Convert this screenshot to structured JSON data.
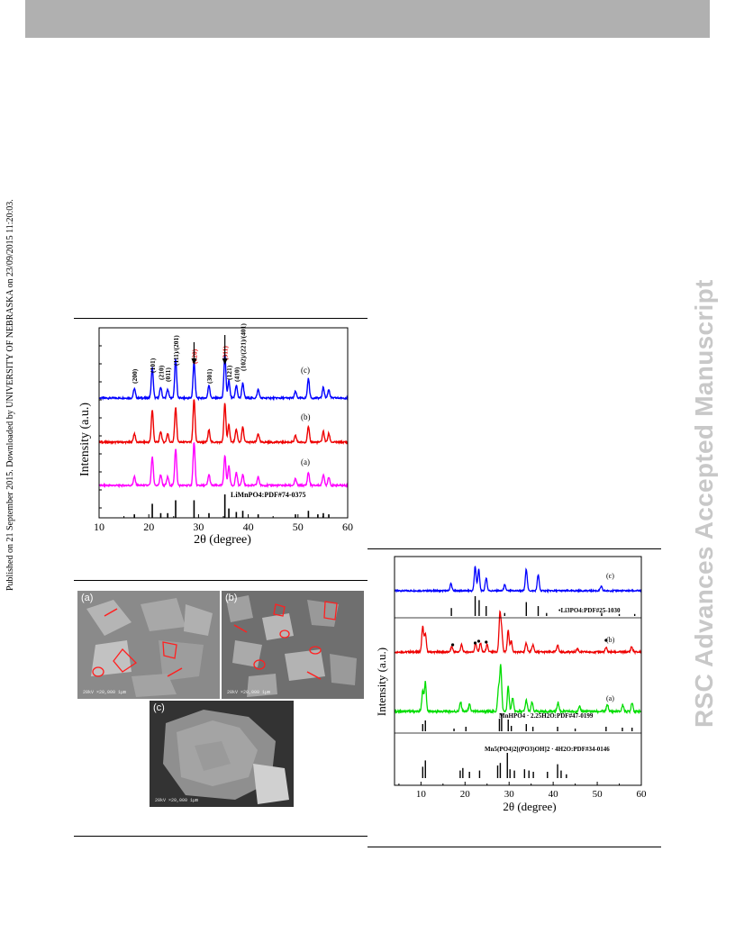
{
  "side_text": "Published on 21 September 2015. Downloaded by UNIVERSITY OF NEBRASKA on 23/09/2015 11:20:03.",
  "watermark": "RSC Advances Accepted Manuscript",
  "figures": [
    {
      "panel_labels": [
        "(c)",
        "(b)",
        "(a)"
      ],
      "reference_label": "LiMnPO4:PDF#74-0375",
      "peak_labels": [
        "(200)",
        "(101)",
        "(210)",
        "(011)",
        "(111)/(201)",
        "(020)",
        "(301)",
        "(311)",
        "(121)",
        "(410)",
        "(102)/(221)/(401)"
      ],
      "highlight_peaks": [
        "(020)",
        "(311)"
      ],
      "colors": {
        "c": "#0000ff",
        "b": "#ee0000",
        "a": "#ff00ff",
        "highlight": "#ee0000"
      }
    },
    {
      "panel_labels": [
        "(a)",
        "(b)",
        "(c)"
      ],
      "scale_text": [
        "20kV ×20,000 1µm",
        "20kV ×20,000 1µm",
        "20kV ×20,000 1µm"
      ]
    },
    {
      "panel_labels": [
        "(c)",
        "(b)",
        "(a)"
      ],
      "reference_labels": [
        "•Li3PO4:PDF#25-1030",
        "MnHPO4 · 2.25H2O:PDF#47-0199",
        "Mn5(PO4)2[(PO3)OH]2 · 4H2O:PDF#34-0146"
      ],
      "colors": {
        "c": "#0000ff",
        "b": "#ee0000",
        "a": "#00dd00"
      }
    }
  ],
  "chart_data": [
    {
      "type": "line",
      "xlabel": "2θ (degree)",
      "ylabel": "Intensity (a.u.)",
      "xlim": [
        10,
        60
      ],
      "xticks": [
        10,
        20,
        30,
        40,
        50,
        60
      ],
      "series": [
        {
          "name": "(c)",
          "x": [
            17.1,
            20.7,
            22.4,
            23.8,
            25.4,
            29.1,
            32.1,
            35.3,
            36.1,
            37.6,
            38.9,
            42.0,
            49.5,
            52.1,
            55.1,
            56.2
          ],
          "y": [
            0.22,
            0.7,
            0.25,
            0.2,
            0.9,
            0.85,
            0.3,
            1.0,
            0.4,
            0.3,
            0.35,
            0.2,
            0.15,
            0.45,
            0.25,
            0.2
          ]
        },
        {
          "name": "(b)",
          "x": [
            17.1,
            20.7,
            22.4,
            23.8,
            25.4,
            29.1,
            32.1,
            35.3,
            36.1,
            37.6,
            38.9,
            42.0,
            49.5,
            52.1,
            55.1,
            56.2
          ],
          "y": [
            0.2,
            0.75,
            0.25,
            0.2,
            0.8,
            1.0,
            0.28,
            0.9,
            0.4,
            0.3,
            0.35,
            0.2,
            0.15,
            0.35,
            0.25,
            0.2
          ]
        },
        {
          "name": "(a)",
          "x": [
            17.1,
            20.7,
            22.4,
            23.8,
            25.4,
            29.1,
            32.1,
            35.3,
            36.1,
            37.6,
            38.9,
            42.0,
            49.5,
            52.1,
            55.1,
            56.2
          ],
          "y": [
            0.2,
            0.65,
            0.25,
            0.2,
            0.85,
            1.0,
            0.25,
            0.7,
            0.45,
            0.3,
            0.25,
            0.2,
            0.15,
            0.3,
            0.25,
            0.2
          ]
        }
      ],
      "reference": {
        "name": "LiMnPO4:PDF#74-0375",
        "x": [
          17.1,
          20.7,
          22.4,
          23.8,
          25.4,
          29.1,
          32.1,
          35.3,
          36.1,
          37.6,
          38.9,
          42.0,
          49.5,
          52.1,
          54.0,
          55.1,
          56.2
        ],
        "y": [
          0.15,
          0.6,
          0.2,
          0.2,
          0.75,
          0.75,
          0.2,
          1.0,
          0.4,
          0.25,
          0.3,
          0.15,
          0.15,
          0.3,
          0.15,
          0.2,
          0.15
        ]
      }
    },
    {
      "type": "line",
      "xlabel": "2θ (degree)",
      "ylabel": "Intensity (a.u.)",
      "xlim": [
        4,
        60
      ],
      "xticks": [
        10,
        20,
        30,
        40,
        50,
        60
      ],
      "series": [
        {
          "name": "(c)",
          "x": [
            16.8,
            22.3,
            23.1,
            24.8,
            29.0,
            33.9,
            36.6,
            50.9
          ],
          "y": [
            0.25,
            0.85,
            0.75,
            0.45,
            0.2,
            0.75,
            0.55,
            0.15
          ]
        },
        {
          "name": "(b)",
          "x": [
            10.4,
            11.0,
            17.0,
            19.2,
            22.4,
            23.5,
            25.0,
            27.9,
            28.3,
            29.8,
            30.5,
            33.9,
            35.4,
            41.0,
            45.5,
            52.0,
            57.8
          ],
          "y": [
            0.7,
            0.5,
            0.15,
            0.2,
            0.25,
            0.25,
            0.2,
            1.0,
            0.55,
            0.6,
            0.3,
            0.25,
            0.2,
            0.2,
            0.1,
            0.12,
            0.15
          ]
        },
        {
          "name": "(a)",
          "x": [
            10.4,
            11.0,
            19.0,
            21.0,
            27.6,
            28.1,
            29.8,
            30.8,
            33.9,
            35.2,
            41.1,
            46.0,
            52.3,
            55.8,
            57.9
          ],
          "y": [
            0.45,
            0.65,
            0.2,
            0.15,
            0.5,
            1.0,
            0.55,
            0.3,
            0.25,
            0.2,
            0.2,
            0.1,
            0.15,
            0.15,
            0.2
          ]
        }
      ],
      "references": [
        {
          "name": "Li3PO4:PDF#25-1030",
          "x": [
            16.9,
            22.3,
            23.2,
            24.8,
            29.0,
            33.9,
            36.6,
            38.5,
            51.0,
            55.0,
            58.5
          ],
          "y": [
            0.4,
            1.0,
            0.8,
            0.5,
            0.15,
            0.7,
            0.5,
            0.15,
            0.15,
            0.1,
            0.1
          ]
        },
        {
          "name": "MnHPO4 · 2.25H2O:PDF#47-0199",
          "x": [
            10.4,
            11.0,
            17.5,
            20.2,
            27.8,
            28.3,
            29.8,
            30.5,
            33.9,
            35.4,
            41.0,
            45.0,
            52.0,
            55.7,
            57.9
          ],
          "y": [
            0.4,
            0.6,
            0.15,
            0.25,
            0.7,
            1.0,
            0.65,
            0.3,
            0.4,
            0.25,
            0.25,
            0.15,
            0.25,
            0.2,
            0.2
          ]
        },
        {
          "name": "Mn5(PO4)2[(PO3)OH]2 · 4H2O:PDF#34-0146",
          "x": [
            10.4,
            11.0,
            18.9,
            19.5,
            21.0,
            23.3,
            27.4,
            28.0,
            29.6,
            30.2,
            31.2,
            33.5,
            34.5,
            35.5,
            38.7,
            41.0,
            41.8,
            43.0
          ],
          "y": [
            0.45,
            0.7,
            0.3,
            0.4,
            0.25,
            0.3,
            0.5,
            0.6,
            1.0,
            0.35,
            0.3,
            0.35,
            0.3,
            0.25,
            0.25,
            0.55,
            0.3,
            0.15
          ]
        }
      ]
    }
  ]
}
